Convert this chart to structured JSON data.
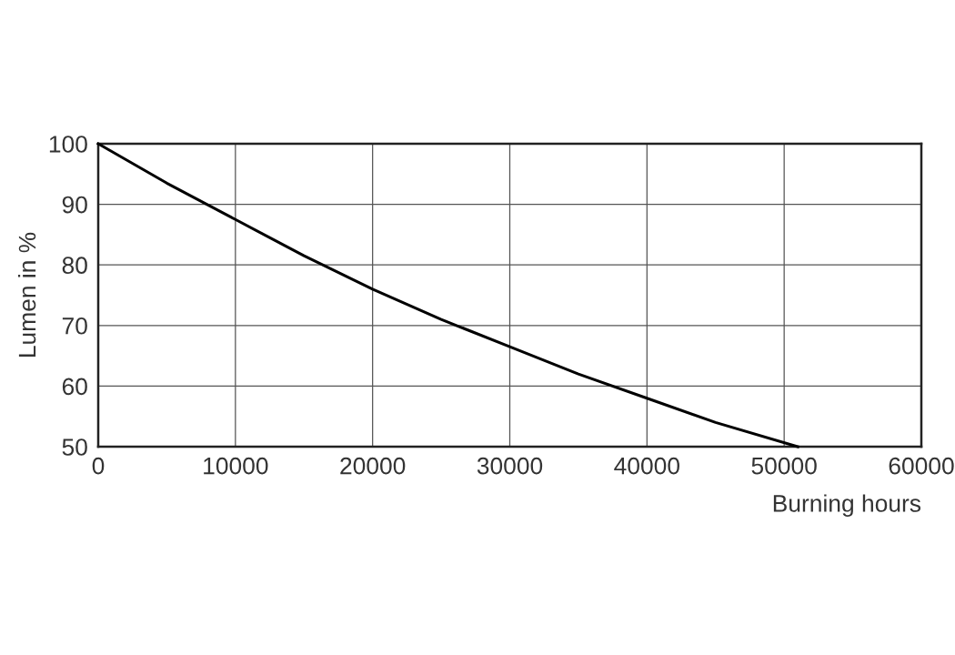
{
  "chart_data": {
    "type": "line",
    "xlabel": "Burning hours",
    "ylabel": "Lumen in %",
    "x": [
      0,
      5000,
      10000,
      15000,
      20000,
      25000,
      30000,
      35000,
      40000,
      45000,
      51000
    ],
    "series": [
      {
        "color": "#000000",
        "values": [
          100,
          93.5,
          87.5,
          81.5,
          76,
          71,
          66.5,
          62,
          58,
          54,
          50
        ]
      }
    ],
    "xlim": [
      0,
      60000
    ],
    "ylim": [
      50,
      100
    ],
    "xticks": [
      0,
      10000,
      20000,
      30000,
      40000,
      50000,
      60000
    ],
    "yticks": [
      50,
      60,
      70,
      80,
      90,
      100
    ],
    "grid": true,
    "marker": "none",
    "line_style": "solid"
  }
}
